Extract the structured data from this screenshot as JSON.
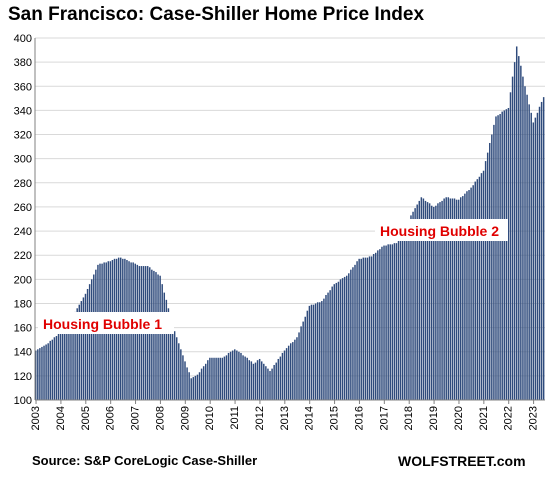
{
  "chart_data": {
    "type": "bar",
    "title": "San Francisco: Case-Shiller Home Price Index",
    "xlabel": "",
    "ylabel": "",
    "ylim": [
      100,
      400
    ],
    "yticks": [
      100,
      120,
      140,
      160,
      180,
      200,
      220,
      240,
      260,
      280,
      300,
      320,
      340,
      360,
      380,
      400
    ],
    "xtick_labels": [
      "2003",
      "2004",
      "2005",
      "2006",
      "2007",
      "2008",
      "2009",
      "2010",
      "2011",
      "2012",
      "2013",
      "2014",
      "2015",
      "2016",
      "2017",
      "2018",
      "2019",
      "2020",
      "2021",
      "2022",
      "2023"
    ],
    "grid": true,
    "bar_color": "#2f4b7c",
    "annotation_color": "#e00000",
    "x_start": "2003-01",
    "anchors": [
      [
        "2003-01",
        141
      ],
      [
        "2003-07",
        147
      ],
      [
        "2004-01",
        156
      ],
      [
        "2004-07",
        170
      ],
      [
        "2005-01",
        188
      ],
      [
        "2005-07",
        212
      ],
      [
        "2006-01",
        215
      ],
      [
        "2006-05",
        218
      ],
      [
        "2006-09",
        216
      ],
      [
        "2007-03",
        211
      ],
      [
        "2007-07",
        211
      ],
      [
        "2008-01",
        203
      ],
      [
        "2008-07",
        162
      ],
      [
        "2009-01",
        132
      ],
      [
        "2009-04",
        118
      ],
      [
        "2009-07",
        121
      ],
      [
        "2010-01",
        135
      ],
      [
        "2010-07",
        135
      ],
      [
        "2011-01",
        142
      ],
      [
        "2011-07",
        135
      ],
      [
        "2011-10",
        130
      ],
      [
        "2012-01",
        134
      ],
      [
        "2012-06",
        124
      ],
      [
        "2013-01",
        141
      ],
      [
        "2013-07",
        152
      ],
      [
        "2014-01",
        178
      ],
      [
        "2014-07",
        182
      ],
      [
        "2015-01",
        196
      ],
      [
        "2015-07",
        203
      ],
      [
        "2016-01",
        217
      ],
      [
        "2016-07",
        219
      ],
      [
        "2017-01",
        228
      ],
      [
        "2017-07",
        230
      ],
      [
        "2018-01",
        250
      ],
      [
        "2018-07",
        268
      ],
      [
        "2019-01",
        260
      ],
      [
        "2019-07",
        268
      ],
      [
        "2020-01",
        266
      ],
      [
        "2020-07",
        276
      ],
      [
        "2021-01",
        290
      ],
      [
        "2021-07",
        335
      ],
      [
        "2022-01",
        342
      ],
      [
        "2022-05",
        393
      ],
      [
        "2022-09",
        360
      ],
      [
        "2023-01",
        330
      ],
      [
        "2023-06",
        351
      ]
    ],
    "annotations": [
      "Housing Bubble 1",
      "Housing Bubble 2"
    ]
  },
  "footer": {
    "source": "Source: S&P CoreLogic Case-Shiller",
    "brand": "WOLFSTREET.com"
  }
}
